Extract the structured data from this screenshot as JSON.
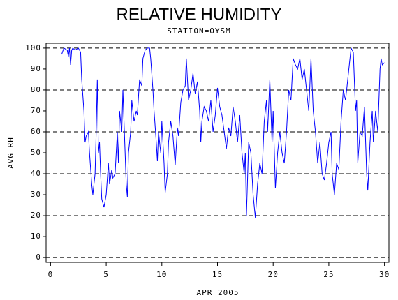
{
  "chart_data": {
    "type": "line",
    "title": "RELATIVE HUMIDITY",
    "subtitle": "STATION=OYSM",
    "x_label": "APR 2005",
    "y_label": "AVG_RH",
    "xlim": [
      -0.4,
      30.4
    ],
    "ylim": [
      -2.3,
      102.3
    ],
    "xticks": [
      0,
      5,
      10,
      15,
      20,
      25,
      30
    ],
    "yticks": [
      0,
      10,
      20,
      30,
      40,
      50,
      60,
      70,
      80,
      90,
      100
    ],
    "ygrid": [
      0,
      20,
      40,
      60,
      80,
      100
    ],
    "series": [
      {
        "name": "AVG_RH",
        "color": "#0000ff",
        "x": [
          1.0,
          1.2,
          1.5,
          1.6,
          1.7,
          1.8,
          1.9,
          2.0,
          2.2,
          2.5,
          2.7,
          2.8,
          3.0,
          3.1,
          3.2,
          3.4,
          3.5,
          3.7,
          3.8,
          4.0,
          4.1,
          4.2,
          4.3,
          4.4,
          4.5,
          4.6,
          4.8,
          5.0,
          5.2,
          5.3,
          5.5,
          5.6,
          5.8,
          6.0,
          6.1,
          6.2,
          6.4,
          6.5,
          6.7,
          6.8,
          6.9,
          7.0,
          7.2,
          7.3,
          7.5,
          7.7,
          7.8,
          8.0,
          8.2,
          8.3,
          8.5,
          8.7,
          8.9,
          9.0,
          9.2,
          9.3,
          9.5,
          9.6,
          9.7,
          9.9,
          10.0,
          10.2,
          10.3,
          10.5,
          10.6,
          10.8,
          11.0,
          11.2,
          11.4,
          11.5,
          11.7,
          11.9,
          12.1,
          12.2,
          12.4,
          12.6,
          12.8,
          13.0,
          13.2,
          13.4,
          13.5,
          13.6,
          13.8,
          14.0,
          14.2,
          14.4,
          14.6,
          14.8,
          15.0,
          15.2,
          15.4,
          15.6,
          15.8,
          16.0,
          16.2,
          16.4,
          16.6,
          16.8,
          17.0,
          17.2,
          17.4,
          17.5,
          17.6,
          17.8,
          18.0,
          18.2,
          18.4,
          18.6,
          18.8,
          19.0,
          19.2,
          19.4,
          19.5,
          19.7,
          19.9,
          20.0,
          20.2,
          20.4,
          20.6,
          20.8,
          21.0,
          21.2,
          21.4,
          21.6,
          21.8,
          22.0,
          22.2,
          22.4,
          22.6,
          22.8,
          23.0,
          23.2,
          23.4,
          23.6,
          23.8,
          24.0,
          24.2,
          24.4,
          24.6,
          24.8,
          25.0,
          25.2,
          25.3,
          25.5,
          25.7,
          25.9,
          26.1,
          26.3,
          26.5,
          26.7,
          26.9,
          27.0,
          27.2,
          27.4,
          27.5,
          27.6,
          27.8,
          28.0,
          28.2,
          28.4,
          28.5,
          28.7,
          28.9,
          29.0,
          29.2,
          29.4,
          29.6,
          29.7,
          29.8,
          30.0
        ],
        "values": [
          97,
          100,
          99,
          96,
          100,
          92,
          99,
          100,
          99,
          100,
          98,
          85,
          70,
          55,
          58,
          60,
          50,
          35,
          30,
          40,
          60,
          85,
          50,
          55,
          40,
          28,
          24,
          30,
          45,
          35,
          42,
          38,
          40,
          60,
          45,
          70,
          60,
          80,
          50,
          35,
          29,
          50,
          60,
          75,
          65,
          70,
          68,
          85,
          82,
          95,
          99,
          100,
          100,
          95,
          80,
          70,
          55,
          46,
          60,
          50,
          65,
          45,
          31,
          40,
          55,
          65,
          58,
          44,
          62,
          58,
          74,
          80,
          82,
          95,
          75,
          80,
          88,
          78,
          84,
          70,
          55,
          65,
          72,
          70,
          65,
          75,
          60,
          68,
          81,
          72,
          68,
          60,
          52,
          62,
          58,
          72,
          65,
          55,
          68,
          50,
          40,
          50,
          20,
          55,
          50,
          30,
          19,
          35,
          45,
          40,
          65,
          75,
          60,
          85,
          55,
          70,
          33,
          50,
          60,
          50,
          45,
          60,
          80,
          75,
          95,
          92,
          90,
          95,
          85,
          90,
          80,
          70,
          95,
          70,
          60,
          45,
          55,
          40,
          37,
          45,
          55,
          60,
          40,
          30,
          45,
          42,
          65,
          80,
          75,
          85,
          95,
          100,
          98,
          70,
          75,
          45,
          60,
          58,
          72,
          40,
          32,
          55,
          70,
          55,
          70,
          60,
          90,
          95,
          92,
          93
        ]
      }
    ]
  }
}
